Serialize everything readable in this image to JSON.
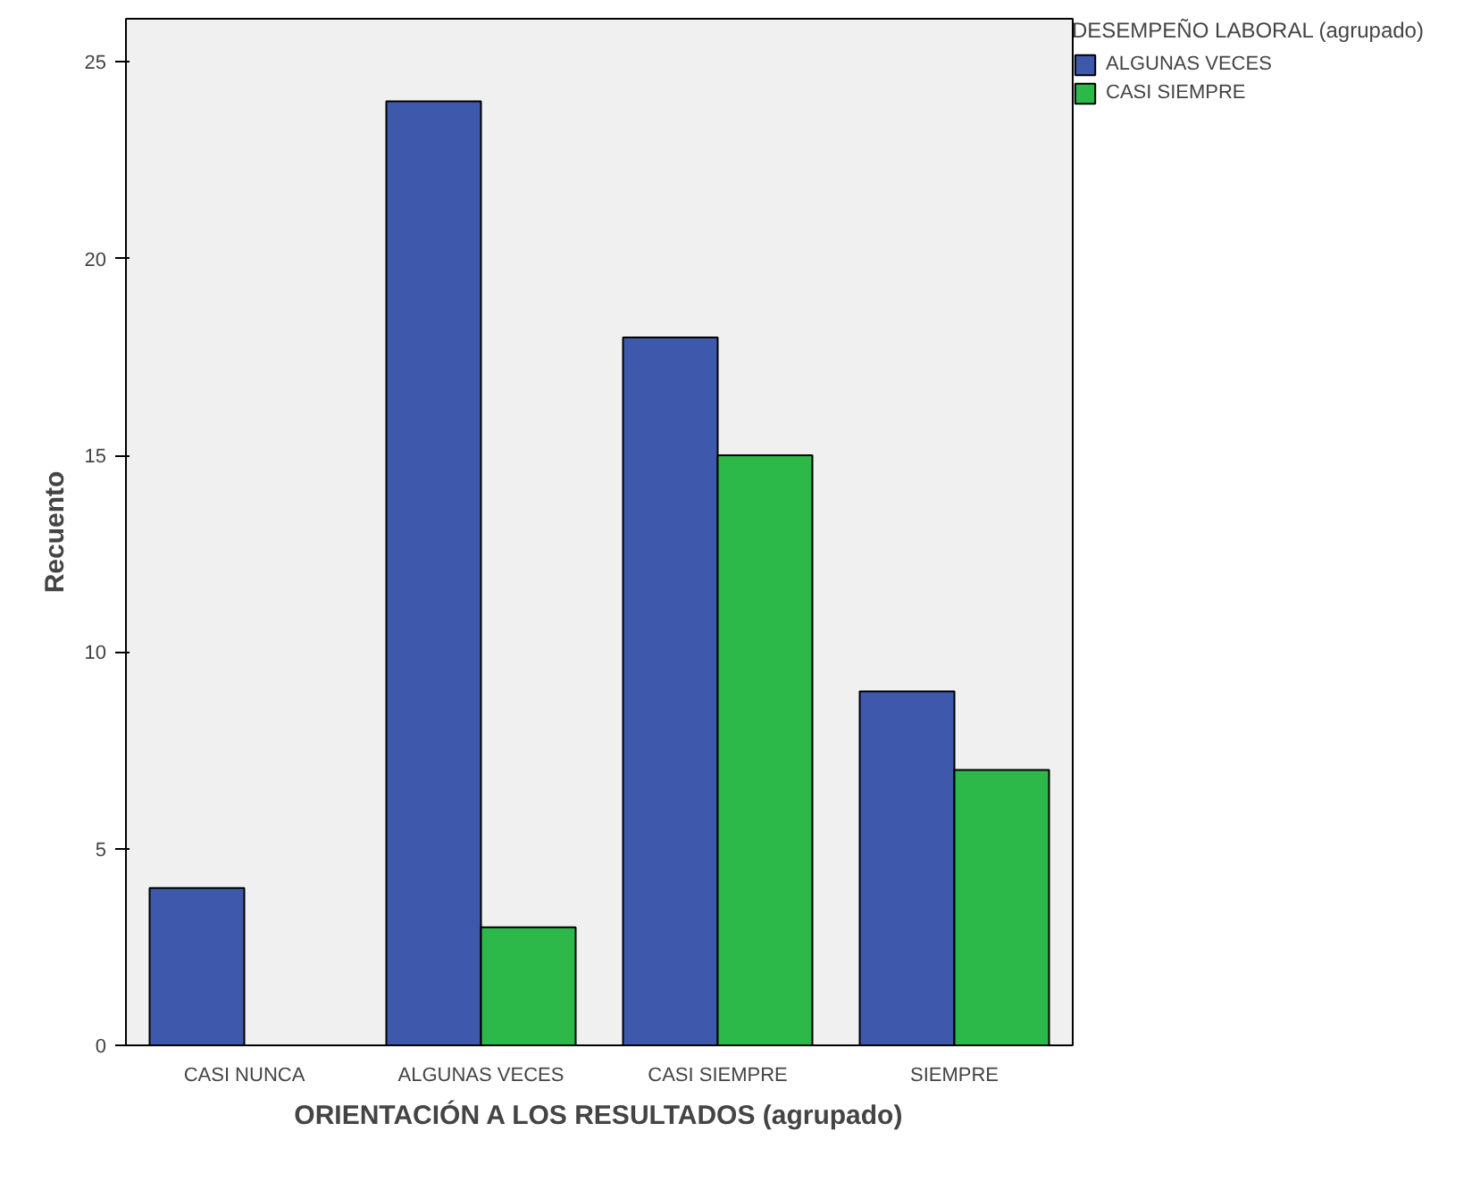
{
  "chart_data": {
    "type": "bar",
    "xlabel": "ORIENTACIÓN A LOS RESULTADOS (agrupado)",
    "ylabel": "Recuento",
    "legend_title": "DESEMPEÑO LABORAL (agrupado)",
    "categories": [
      "CASI NUNCA",
      "ALGUNAS VECES",
      "CASI SIEMPRE",
      "SIEMPRE"
    ],
    "series": [
      {
        "name": "ALGUNAS VECES",
        "color": "#3e58ac",
        "values": [
          4,
          24,
          18,
          9
        ]
      },
      {
        "name": "CASI SIEMPRE",
        "color": "#2db84a",
        "values": [
          null,
          3,
          15,
          7
        ]
      }
    ],
    "ylim": [
      0,
      26.1
    ],
    "yticks": [
      0,
      5,
      10,
      15,
      20,
      25
    ],
    "grid": false,
    "legend": "right"
  }
}
